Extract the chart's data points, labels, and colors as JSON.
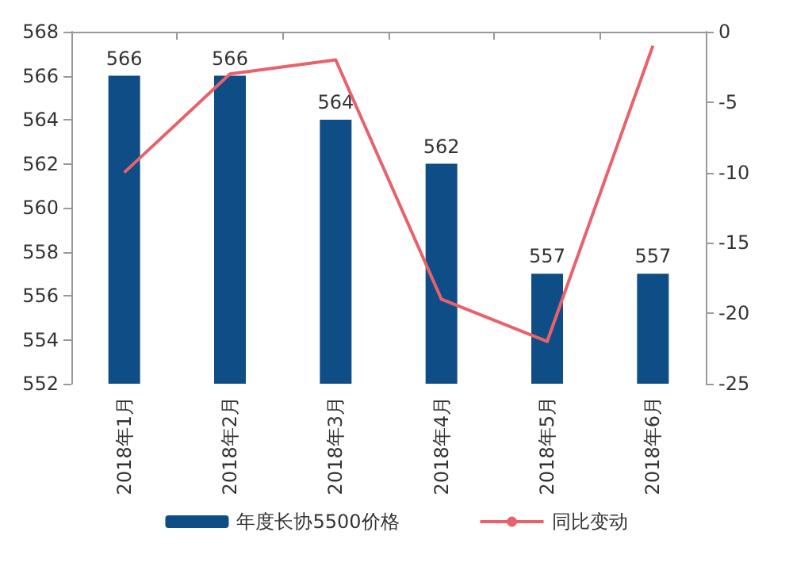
{
  "chart_data": {
    "type": "bar",
    "categories": [
      "2018年1月",
      "2018年2月",
      "2018年3月",
      "2018年4月",
      "2018年5月",
      "2018年6月"
    ],
    "series": [
      {
        "name": "年度长协5500价格",
        "color": "#0e4d86",
        "values": [
          566,
          566,
          564,
          562,
          557,
          557
        ],
        "data_labels": true
      },
      {
        "name": "同比变动",
        "type": "line",
        "axis": "y2",
        "color": "#e8626b",
        "values": [
          -10,
          -3,
          -2,
          -19,
          -22,
          -1
        ],
        "marker": "none"
      }
    ],
    "ylim": [
      552,
      568
    ],
    "yticks": [
      552,
      554,
      556,
      558,
      560,
      562,
      564,
      566,
      568
    ],
    "y2lim": [
      -25,
      0
    ],
    "y2ticks": [
      -25,
      -20,
      -15,
      -10,
      -5,
      0
    ],
    "grid": false,
    "legend": "bottom"
  }
}
